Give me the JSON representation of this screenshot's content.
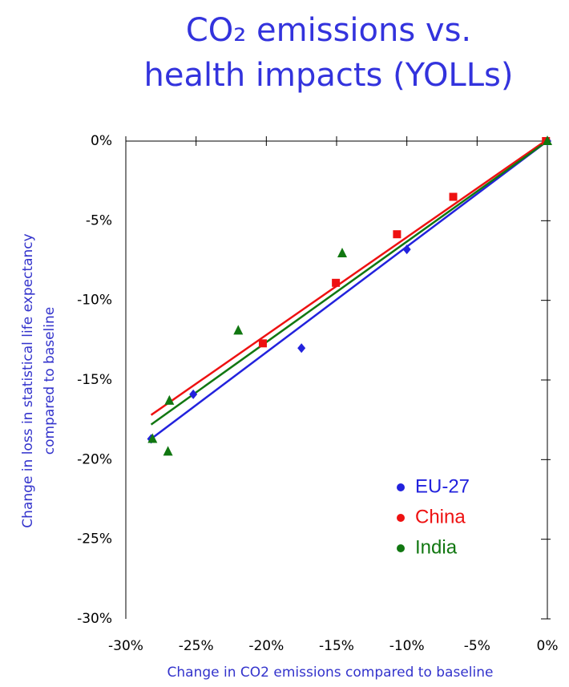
{
  "chart_data": {
    "type": "scatter",
    "title": [
      "CO₂ emissions vs.",
      "health impacts (YOLLs)"
    ],
    "xlabel": "Change in CO2 emissions compared to baseline",
    "ylabel": [
      "Change in loss in statistical life expectancy",
      "compared to baseline"
    ],
    "xlim": [
      -30,
      0
    ],
    "ylim": [
      -30,
      0
    ],
    "xticks": [
      {
        "value": -30,
        "label": "-30%"
      },
      {
        "value": -25,
        "label": "-25%"
      },
      {
        "value": -20,
        "label": "-20%"
      },
      {
        "value": -15,
        "label": "-15%"
      },
      {
        "value": -10,
        "label": "-10%"
      },
      {
        "value": -5,
        "label": "-5%"
      },
      {
        "value": 0,
        "label": "0%"
      }
    ],
    "yticks": [
      {
        "value": 0,
        "label": "0%"
      },
      {
        "value": -5,
        "label": "-5%"
      },
      {
        "value": -10,
        "label": "-10%"
      },
      {
        "value": -15,
        "label": "-15%"
      },
      {
        "value": -20,
        "label": "-20%"
      },
      {
        "value": -25,
        "label": "-25%"
      },
      {
        "value": -30,
        "label": "-30%"
      }
    ],
    "series": [
      {
        "name": "EU-27",
        "color": "#2222dd",
        "marker": "diamond",
        "x": [
          -28.2,
          -25.2,
          -17.5,
          -10.0,
          0
        ],
        "values": [
          -18.7,
          -15.9,
          -13.0,
          -6.8,
          0
        ],
        "trend_x": [
          -28.2,
          0
        ],
        "trend_y": [
          -18.7,
          0
        ]
      },
      {
        "name": "China",
        "color": "#ee1111",
        "marker": "square",
        "x": [
          -20.25,
          -15.05,
          -10.7,
          -6.7,
          -0.1
        ],
        "values": [
          -12.7,
          -8.9,
          -5.85,
          -3.5,
          0
        ],
        "trend_x": [
          -28.2,
          0
        ],
        "trend_y": [
          -17.2,
          0.1
        ]
      },
      {
        "name": "India",
        "color": "#117711",
        "marker": "triangle",
        "x": [
          -28.1,
          -27.0,
          -26.9,
          -22.0,
          -14.6,
          0
        ],
        "values": [
          -18.7,
          -19.5,
          -16.3,
          -11.9,
          -7.05,
          0
        ],
        "trend_x": [
          -28.2,
          0
        ],
        "trend_y": [
          -17.8,
          0
        ]
      }
    ]
  }
}
